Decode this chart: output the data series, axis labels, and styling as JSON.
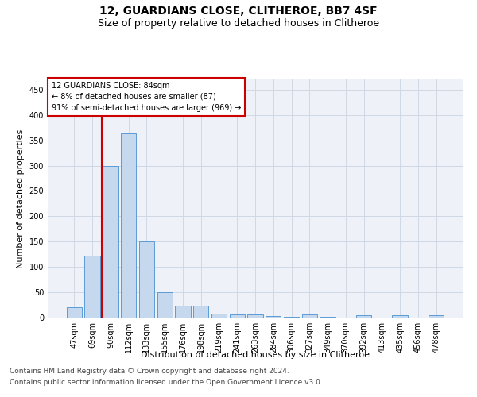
{
  "title": "12, GUARDIANS CLOSE, CLITHEROE, BB7 4SF",
  "subtitle": "Size of property relative to detached houses in Clitheroe",
  "xlabel": "Distribution of detached houses by size in Clitheroe",
  "ylabel": "Number of detached properties",
  "categories": [
    "47sqm",
    "69sqm",
    "90sqm",
    "112sqm",
    "133sqm",
    "155sqm",
    "176sqm",
    "198sqm",
    "219sqm",
    "241sqm",
    "263sqm",
    "284sqm",
    "306sqm",
    "327sqm",
    "349sqm",
    "370sqm",
    "392sqm",
    "413sqm",
    "435sqm",
    "456sqm",
    "478sqm"
  ],
  "values": [
    20,
    122,
    300,
    363,
    150,
    50,
    23,
    23,
    8,
    7,
    6,
    3,
    1,
    6,
    1,
    0,
    4,
    0,
    4,
    0,
    4
  ],
  "bar_color": "#c5d8ed",
  "bar_edge_color": "#5b9bd5",
  "ylim": [
    0,
    470
  ],
  "yticks": [
    0,
    50,
    100,
    150,
    200,
    250,
    300,
    350,
    400,
    450
  ],
  "annotation_box_text": "12 GUARDIANS CLOSE: 84sqm\n← 8% of detached houses are smaller (87)\n91% of semi-detached houses are larger (969) →",
  "vline_x_index": 1.5,
  "annotation_box_color": "#ffffff",
  "annotation_box_edge": "#cc0000",
  "vline_color": "#cc0000",
  "footer_line1": "Contains HM Land Registry data © Crown copyright and database right 2024.",
  "footer_line2": "Contains public sector information licensed under the Open Government Licence v3.0.",
  "bg_color": "#ffffff",
  "grid_color": "#d0d8e4",
  "title_fontsize": 10,
  "subtitle_fontsize": 9,
  "axis_label_fontsize": 8,
  "tick_fontsize": 7,
  "footer_fontsize": 6.5
}
